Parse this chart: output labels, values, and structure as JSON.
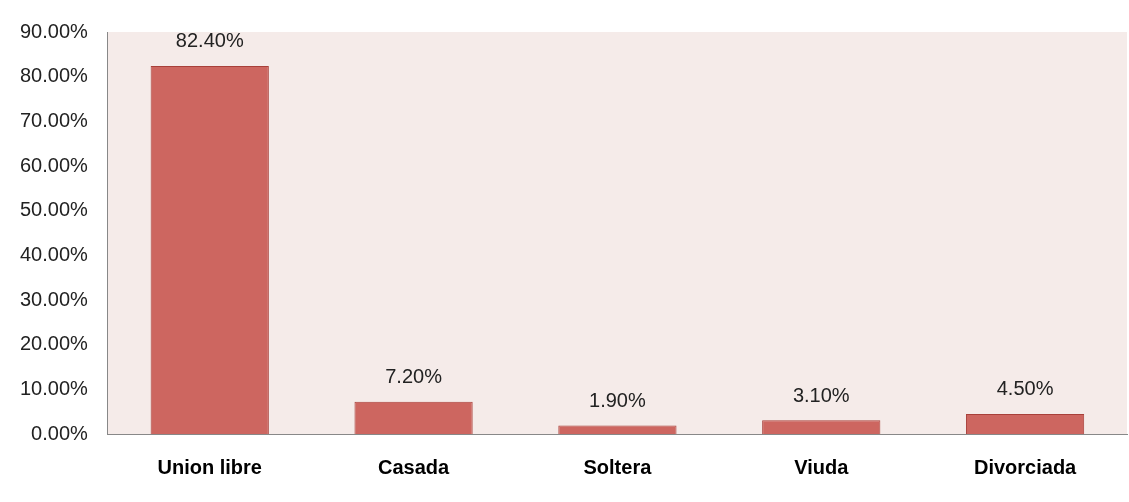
{
  "chart_data": {
    "type": "bar",
    "categories": [
      "Union libre",
      "Casada",
      "Soltera",
      "Viuda",
      "Divorciada"
    ],
    "values": [
      82.4,
      7.2,
      1.9,
      3.1,
      4.5
    ],
    "value_labels": [
      "82.40%",
      "7.20%",
      "1.90%",
      "3.10%",
      "4.50%"
    ],
    "color": "#cd6660",
    "ylim": [
      0,
      90
    ],
    "yticks": [
      {
        "value": 0,
        "label": "0.00%"
      },
      {
        "value": 10,
        "label": "10.00%"
      },
      {
        "value": 20,
        "label": "20.00%"
      },
      {
        "value": 30,
        "label": "30.00%"
      },
      {
        "value": 40,
        "label": "40.00%"
      },
      {
        "value": 50,
        "label": "50.00%"
      },
      {
        "value": 60,
        "label": "60.00%"
      },
      {
        "value": 70,
        "label": "70.00%"
      },
      {
        "value": 80,
        "label": "80.00%"
      },
      {
        "value": 90,
        "label": "90.00%"
      }
    ],
    "grid": false,
    "legend": false
  }
}
